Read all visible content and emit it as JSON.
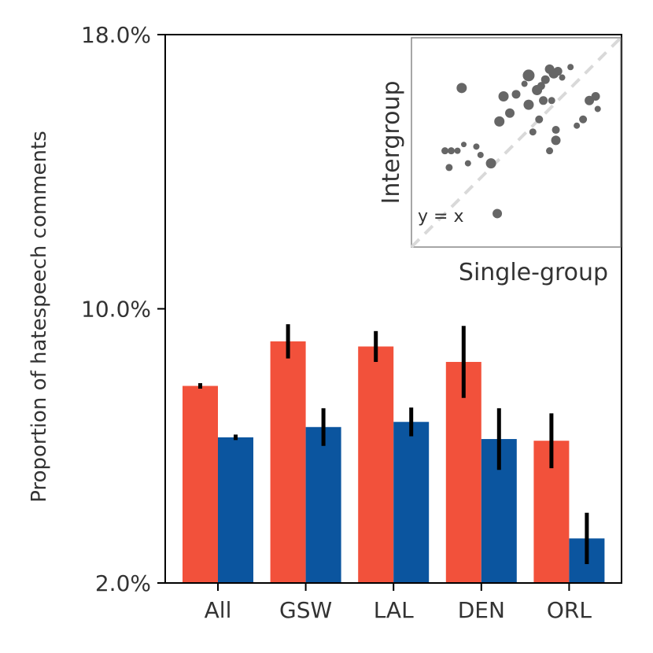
{
  "chart_data": {
    "type": "bar",
    "ylabel": "Proportion of hatespeech comments",
    "ylim": [
      2.0,
      18.0
    ],
    "yticks": [
      "2.0%",
      "10.0%",
      "18.0%"
    ],
    "categories": [
      "All",
      "GSW",
      "LAL",
      "DEN",
      "ORL"
    ],
    "series": [
      {
        "color": "#f2513b",
        "values": [
          7.75,
          9.05,
          8.9,
          8.45,
          6.15
        ],
        "errors": [
          0.08,
          0.5,
          0.45,
          1.05,
          0.8
        ]
      },
      {
        "color": "#0b559f",
        "values": [
          6.25,
          6.55,
          6.7,
          6.2,
          3.3
        ],
        "errors": [
          0.08,
          0.55,
          0.42,
          0.9,
          0.75
        ]
      }
    ],
    "inset": {
      "type": "scatter",
      "xlabel": "Single-group",
      "ylabel": "Intergroup",
      "annotation": "y = x",
      "xlim": [
        0,
        1
      ],
      "ylim": [
        0,
        1
      ],
      "point_color": "#666666",
      "diagonal_color": "#d9d9d9",
      "points": [
        {
          "x": 0.24,
          "y": 0.76,
          "s": 6.5
        },
        {
          "x": 0.44,
          "y": 0.72,
          "s": 6.5
        },
        {
          "x": 0.5,
          "y": 0.73,
          "s": 5.5
        },
        {
          "x": 0.56,
          "y": 0.82,
          "s": 7.5
        },
        {
          "x": 0.6,
          "y": 0.75,
          "s": 6.5
        },
        {
          "x": 0.64,
          "y": 0.8,
          "s": 5.5
        },
        {
          "x": 0.66,
          "y": 0.85,
          "s": 6.0
        },
        {
          "x": 0.68,
          "y": 0.83,
          "s": 6.5
        },
        {
          "x": 0.7,
          "y": 0.84,
          "s": 5.5
        },
        {
          "x": 0.72,
          "y": 0.81,
          "s": 4.0
        },
        {
          "x": 0.63,
          "y": 0.7,
          "s": 5.5
        },
        {
          "x": 0.67,
          "y": 0.7,
          "s": 4.5
        },
        {
          "x": 0.56,
          "y": 0.68,
          "s": 6.5
        },
        {
          "x": 0.47,
          "y": 0.64,
          "s": 6.0
        },
        {
          "x": 0.42,
          "y": 0.6,
          "s": 6.5
        },
        {
          "x": 0.61,
          "y": 0.61,
          "s": 5.0
        },
        {
          "x": 0.76,
          "y": 0.86,
          "s": 4.0
        },
        {
          "x": 0.85,
          "y": 0.7,
          "s": 6.0
        },
        {
          "x": 0.88,
          "y": 0.72,
          "s": 5.5
        },
        {
          "x": 0.89,
          "y": 0.66,
          "s": 4.0
        },
        {
          "x": 0.22,
          "y": 0.46,
          "s": 4.0
        },
        {
          "x": 0.25,
          "y": 0.49,
          "s": 3.5
        },
        {
          "x": 0.33,
          "y": 0.44,
          "s": 4.0
        },
        {
          "x": 0.31,
          "y": 0.48,
          "s": 4.0
        },
        {
          "x": 0.38,
          "y": 0.4,
          "s": 6.5
        },
        {
          "x": 0.16,
          "y": 0.46,
          "s": 4.5
        },
        {
          "x": 0.19,
          "y": 0.46,
          "s": 4.5
        },
        {
          "x": 0.18,
          "y": 0.38,
          "s": 4.5
        },
        {
          "x": 0.27,
          "y": 0.4,
          "s": 4.0
        },
        {
          "x": 0.66,
          "y": 0.46,
          "s": 4.5
        },
        {
          "x": 0.82,
          "y": 0.61,
          "s": 5.0
        },
        {
          "x": 0.79,
          "y": 0.58,
          "s": 4.0
        },
        {
          "x": 0.58,
          "y": 0.55,
          "s": 4.5
        },
        {
          "x": 0.69,
          "y": 0.56,
          "s": 5.0
        },
        {
          "x": 0.69,
          "y": 0.51,
          "s": 6.0
        },
        {
          "x": 0.41,
          "y": 0.16,
          "s": 6.0
        },
        {
          "x": 0.62,
          "y": 0.77,
          "s": 5.0
        },
        {
          "x": 0.54,
          "y": 0.78,
          "s": 4.0
        }
      ]
    }
  }
}
